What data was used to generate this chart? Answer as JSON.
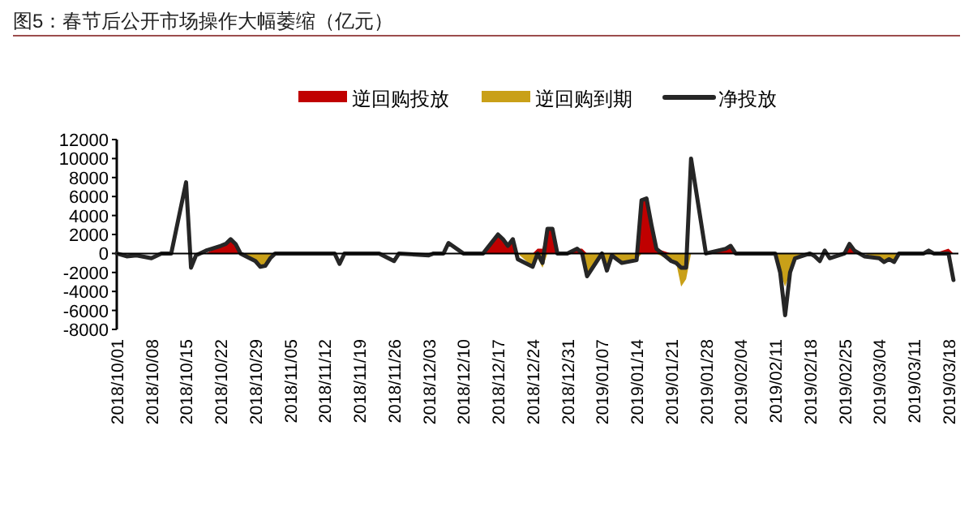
{
  "chart_data": {
    "type": "line",
    "title": "图5：春节后公开市场操作大幅萎缩（亿元）",
    "legend": "top",
    "x": [
      "2018-10-01",
      "2018-10-03",
      "2018-10-05",
      "2018-10-08",
      "2018-10-10",
      "2018-10-12",
      "2018-10-15",
      "2018-10-16",
      "2018-10-17",
      "2018-10-19",
      "2018-10-22",
      "2018-10-23",
      "2018-10-24",
      "2018-10-25",
      "2018-10-26",
      "2018-10-29",
      "2018-10-30",
      "2018-10-31",
      "2018-11-01",
      "2018-11-02",
      "2018-11-08",
      "2018-11-14",
      "2018-11-15",
      "2018-11-16",
      "2018-11-23",
      "2018-11-26",
      "2018-11-27",
      "2018-12-03",
      "2018-12-04",
      "2018-12-06",
      "2018-12-07",
      "2018-12-10",
      "2018-12-14",
      "2018-12-17",
      "2018-12-18",
      "2018-12-19",
      "2018-12-20",
      "2018-12-21",
      "2018-12-24",
      "2018-12-25",
      "2018-12-26",
      "2018-12-27",
      "2018-12-28",
      "2018-12-29",
      "2018-12-31",
      "2019-01-02",
      "2019-01-03",
      "2019-01-04",
      "2019-01-07",
      "2019-01-08",
      "2019-01-09",
      "2019-01-10",
      "2019-01-11",
      "2019-01-14",
      "2019-01-15",
      "2019-01-16",
      "2019-01-17",
      "2019-01-18",
      "2019-01-21",
      "2019-01-22",
      "2019-01-23",
      "2019-01-24",
      "2019-01-25",
      "2019-01-28",
      "2019-02-01",
      "2019-02-02",
      "2019-02-03",
      "2019-02-11",
      "2019-02-12",
      "2019-02-13",
      "2019-02-14",
      "2019-02-15",
      "2019-02-18",
      "2019-02-19",
      "2019-02-20",
      "2019-02-21",
      "2019-02-22",
      "2019-02-25",
      "2019-02-26",
      "2019-02-27",
      "2019-02-28",
      "2019-03-01",
      "2019-03-04",
      "2019-03-05",
      "2019-03-06",
      "2019-03-07",
      "2019-03-08",
      "2019-03-13",
      "2019-03-14",
      "2019-03-15",
      "2019-03-18",
      "2019-03-19"
    ],
    "series": [
      {
        "name": "逆回购投放",
        "type": "area",
        "color": "#c00000",
        "values": [
          0,
          0,
          0,
          0,
          0,
          0,
          0,
          0,
          0,
          0,
          800,
          1000,
          1500,
          1000,
          0,
          0,
          0,
          0,
          0,
          0,
          0,
          0,
          0,
          0,
          0,
          0,
          0,
          0,
          0,
          0,
          0,
          0,
          0,
          2000,
          1500,
          800,
          1500,
          0,
          0,
          500,
          500,
          2600,
          2600,
          0,
          0,
          500,
          500,
          0,
          0,
          0,
          0,
          0,
          0,
          0,
          5600,
          5800,
          3000,
          500,
          0,
          0,
          0,
          0,
          0,
          0,
          500,
          800,
          0,
          0,
          0,
          0,
          0,
          0,
          0,
          0,
          0,
          0,
          0,
          0,
          1000,
          300,
          0,
          0,
          0,
          0,
          0,
          0,
          0,
          0,
          0,
          0,
          500,
          0
        ]
      },
      {
        "name": "逆回购到期",
        "type": "area",
        "color": "#c9a018",
        "values": [
          0,
          0,
          0,
          0,
          0,
          0,
          0,
          0,
          0,
          0,
          0,
          0,
          0,
          0,
          0,
          -800,
          -1400,
          -1300,
          -500,
          0,
          0,
          0,
          0,
          0,
          0,
          0,
          0,
          0,
          0,
          0,
          0,
          0,
          0,
          0,
          0,
          0,
          0,
          0,
          -1400,
          -500,
          -1500,
          0,
          0,
          0,
          0,
          0,
          0,
          -2400,
          0,
          -1800,
          -200,
          -600,
          -1000,
          -700,
          0,
          0,
          0,
          0,
          -800,
          -1000,
          -3500,
          -2700,
          0,
          0,
          0,
          0,
          0,
          0,
          -2000,
          -3500,
          -2000,
          -500,
          0,
          0,
          0,
          0,
          0,
          0,
          0,
          0,
          0,
          0,
          -500,
          -900,
          -600,
          -900,
          0,
          0,
          0,
          0,
          0,
          0
        ]
      },
      {
        "name": "净投放",
        "type": "line",
        "color": "#262626",
        "values": [
          0,
          -300,
          -200,
          -500,
          0,
          0,
          7500,
          -1500,
          -200,
          300,
          800,
          1000,
          1500,
          1000,
          0,
          -800,
          -1400,
          -1300,
          -500,
          0,
          0,
          0,
          -1100,
          0,
          0,
          -800,
          0,
          -200,
          0,
          0,
          1100,
          0,
          0,
          2000,
          1500,
          800,
          1500,
          -600,
          -1400,
          0,
          -1000,
          2600,
          2600,
          0,
          0,
          500,
          0,
          -2400,
          0,
          -1800,
          -200,
          -600,
          -1000,
          -700,
          5600,
          5800,
          3000,
          500,
          -800,
          -1000,
          -1500,
          -1500,
          10000,
          0,
          500,
          800,
          0,
          0,
          -2000,
          -6500,
          -2000,
          -500,
          0,
          -300,
          -800,
          300,
          -500,
          0,
          1000,
          300,
          0,
          -300,
          -500,
          -900,
          -600,
          -900,
          0,
          0,
          300,
          0,
          0,
          -2800
        ]
      }
    ],
    "xlim": [
      "2018-10-01",
      "2019-03-20"
    ],
    "xticks": [
      {
        "value": "2018-10-01",
        "label": "2018/10/01"
      },
      {
        "value": "2018-10-08",
        "label": "2018/10/08"
      },
      {
        "value": "2018-10-15",
        "label": "2018/10/15"
      },
      {
        "value": "2018-10-22",
        "label": "2018/10/22"
      },
      {
        "value": "2018-10-29",
        "label": "2018/10/29"
      },
      {
        "value": "2018-11-05",
        "label": "2018/11/05"
      },
      {
        "value": "2018-11-12",
        "label": "2018/11/12"
      },
      {
        "value": "2018-11-19",
        "label": "2018/11/19"
      },
      {
        "value": "2018-11-26",
        "label": "2018/11/26"
      },
      {
        "value": "2018-12-03",
        "label": "2018/12/03"
      },
      {
        "value": "2018-12-10",
        "label": "2018/12/10"
      },
      {
        "value": "2018-12-17",
        "label": "2018/12/17"
      },
      {
        "value": "2018-12-24",
        "label": "2018/12/24"
      },
      {
        "value": "2018-12-31",
        "label": "2018/12/31"
      },
      {
        "value": "2019-01-07",
        "label": "2019/01/07"
      },
      {
        "value": "2019-01-14",
        "label": "2019/01/14"
      },
      {
        "value": "2019-01-21",
        "label": "2019/01/21"
      },
      {
        "value": "2019-01-28",
        "label": "2019/01/28"
      },
      {
        "value": "2019-02-04",
        "label": "2019/02/04"
      },
      {
        "value": "2019-02-11",
        "label": "2019/02/11"
      },
      {
        "value": "2019-02-18",
        "label": "2019/02/18"
      },
      {
        "value": "2019-02-25",
        "label": "2019/02/25"
      },
      {
        "value": "2019-03-04",
        "label": "2019/03/04"
      },
      {
        "value": "2019-03-11",
        "label": "2019/03/11"
      },
      {
        "value": "2019-03-18",
        "label": "2019/03/18"
      }
    ],
    "ylim": [
      -8000,
      12000
    ],
    "yticks": [
      -8000,
      -6000,
      -4000,
      -2000,
      0,
      2000,
      4000,
      6000,
      8000,
      10000,
      12000
    ]
  }
}
